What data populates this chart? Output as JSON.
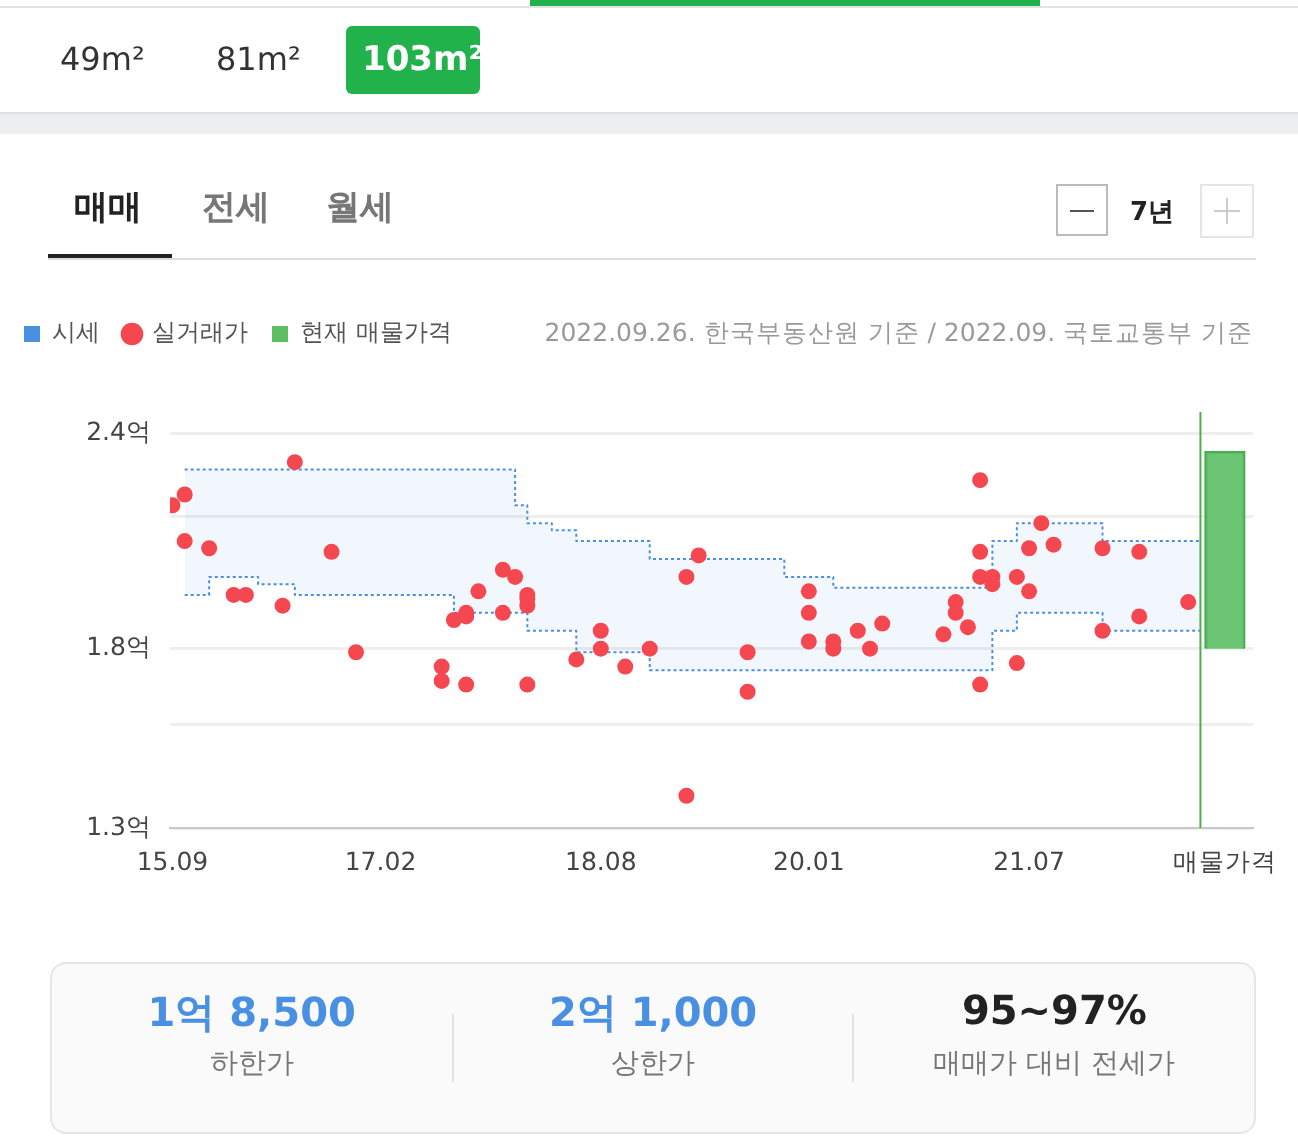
{
  "chart_data": [
    {
      "type": "other",
      "annotations": [
        "49m²",
        "81m²",
        "103m²",
        "매매",
        "전세",
        "월세",
        "7년"
      ]
    },
    {
      "type": "scatter",
      "legend": "top left",
      "grid": "y",
      "annotations": [
        "2022.09.26. 한국부동산원 기준 / 2022.09. 국토교통부 기준"
      ],
      "xlim": [
        "2015-08-25",
        "2023-01-10"
      ],
      "xticks": [
        {
          "value": "2015-09",
          "label": "15.09"
        },
        {
          "value": "2017-02",
          "label": "17.02"
        },
        {
          "value": "2018-08",
          "label": "18.08"
        },
        {
          "value": "2020-01",
          "label": "20.01"
        },
        {
          "value": "2021-07",
          "label": "21.07"
        },
        {
          "value": "2022-11",
          "label": "매물가격"
        }
      ],
      "ylim": [
        1.3,
        2.46
      ],
      "yticks": [
        {
          "value": 1.3,
          "label": "1.3억"
        },
        {
          "value": 1.59,
          "label": null
        },
        {
          "value": 1.8,
          "label": "1.8억"
        },
        {
          "value": 2.17,
          "label": null
        },
        {
          "value": 2.4,
          "label": "2.4억"
        }
      ],
      "ref_lines": [
        {
          "axis": "x",
          "value": "2022-09",
          "color": "#4cae4c"
        }
      ],
      "series": [
        {
          "name": "시세",
          "type": "step",
          "color": "#4a90e2",
          "line_style": "dotted",
          "x": [
            "2015-10",
            "2015-12",
            "2016-04",
            "2016-07",
            "2017-08",
            "2018-01",
            "2018-02",
            "2018-04",
            "2018-06",
            "2018-12",
            "2019-11",
            "2020-03",
            "2021-04",
            "2021-06",
            "2022-01",
            "2022-09"
          ],
          "values": [
            2.3,
            2.3,
            2.3,
            2.3,
            2.3,
            2.2,
            2.15,
            2.13,
            2.1,
            2.05,
            2.0,
            1.97,
            2.1,
            2.15,
            2.1,
            2.1
          ],
          "upper": [
            2.3,
            2.3,
            2.3,
            2.3,
            2.3,
            2.2,
            2.15,
            2.13,
            2.1,
            2.05,
            2.0,
            1.97,
            2.1,
            2.15,
            2.1,
            2.1
          ],
          "lower": [
            1.95,
            2.0,
            1.98,
            1.95,
            1.9,
            1.9,
            1.85,
            1.85,
            1.79,
            1.74,
            1.74,
            1.74,
            1.85,
            1.9,
            1.85,
            1.85
          ]
        },
        {
          "type": "step",
          "color": "#4a90e2",
          "line_style": "dotted",
          "x": [
            "2015-10",
            "2015-12",
            "2016-04",
            "2016-07",
            "2017-08",
            "2018-01",
            "2018-02",
            "2018-04",
            "2018-06",
            "2018-12",
            "2019-11",
            "2020-03",
            "2021-04",
            "2021-06",
            "2022-01",
            "2022-09"
          ],
          "values": [
            1.95,
            2.0,
            1.98,
            1.95,
            1.9,
            1.9,
            1.85,
            1.85,
            1.79,
            1.74,
            1.74,
            1.74,
            1.85,
            1.9,
            1.85,
            1.85
          ]
        },
        {
          "name": "실거래가",
          "type": "scatter",
          "color": "#f5474f",
          "marker": "circle",
          "x": [
            "2015-09",
            "2015-10",
            "2015-10",
            "2015-12",
            "2016-02",
            "2016-03",
            "2016-06",
            "2016-07",
            "2016-10",
            "2016-12",
            "2017-07",
            "2017-07",
            "2017-08",
            "2017-09",
            "2017-09",
            "2017-09",
            "2017-10",
            "2017-12",
            "2017-12",
            "2018-01",
            "2018-02",
            "2018-02",
            "2018-02",
            "2018-02",
            "2018-06",
            "2018-08",
            "2018-08",
            "2018-10",
            "2018-12",
            "2019-03",
            "2019-03",
            "2019-04",
            "2019-08",
            "2019-08",
            "2020-01",
            "2020-01",
            "2020-01",
            "2020-03",
            "2020-03",
            "2020-05",
            "2020-06",
            "2020-07",
            "2020-12",
            "2021-01",
            "2021-01",
            "2021-02",
            "2021-03",
            "2021-03",
            "2021-03",
            "2021-03",
            "2021-04",
            "2021-04",
            "2021-06",
            "2021-06",
            "2021-07",
            "2021-07",
            "2021-08",
            "2021-09",
            "2022-01",
            "2022-01",
            "2022-04",
            "2022-04",
            "2022-08"
          ],
          "values": [
            2.2,
            2.23,
            2.1,
            2.08,
            1.95,
            1.95,
            1.92,
            2.32,
            2.07,
            1.79,
            1.75,
            1.71,
            1.88,
            1.89,
            1.9,
            1.7,
            1.96,
            2.02,
            1.9,
            2.0,
            1.95,
            1.7,
            1.94,
            1.92,
            1.77,
            1.85,
            1.8,
            1.75,
            1.8,
            2.0,
            1.39,
            2.06,
            1.79,
            1.68,
            1.96,
            1.9,
            1.82,
            1.82,
            1.8,
            1.85,
            1.8,
            1.87,
            1.84,
            1.93,
            1.9,
            1.86,
            2.27,
            2.07,
            2.0,
            1.7,
            2.0,
            1.98,
            2.0,
            1.76,
            2.08,
            1.96,
            2.15,
            2.09,
            2.08,
            1.85,
            2.07,
            1.89,
            1.93
          ]
        },
        {
          "name": "현재 매물가격",
          "type": "bar",
          "color": "#5cbf63",
          "x": [
            "2022-11"
          ],
          "base": [
            1.8
          ],
          "values": [
            0.55
          ]
        }
      ]
    },
    {
      "type": "other",
      "annotations": [
        "1억 8,500",
        "하한가",
        "2억 1,000",
        "상한가",
        "95~97%",
        "매매가 대비 전세가"
      ]
    }
  ]
}
